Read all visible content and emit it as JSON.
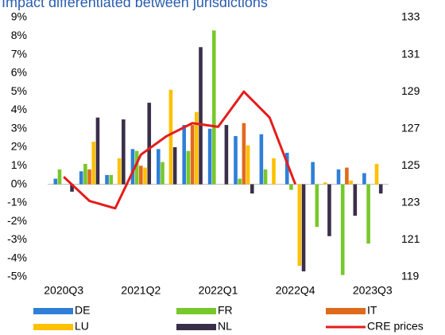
{
  "chart_data": {
    "type": "bar",
    "title": "Impact differentiated between jurisdictions",
    "categories": [
      "2020Q3",
      null,
      null,
      "2021Q2",
      null,
      null,
      "2022Q1",
      null,
      null,
      "2022Q4",
      null,
      null,
      "2023Q3"
    ],
    "series": [
      {
        "name": "DE",
        "color": "#2f7fd8",
        "values": [
          0.3,
          0.7,
          0.5,
          1.9,
          1.9,
          3.2,
          3.0,
          2.6,
          2.7,
          1.7,
          1.2,
          0.8,
          0.6
        ]
      },
      {
        "name": "FR",
        "color": "#77c82a",
        "values": [
          0.8,
          1.1,
          0.5,
          1.8,
          1.2,
          1.8,
          8.3,
          0.3,
          0.8,
          -0.3,
          -2.3,
          -4.9,
          -3.2
        ]
      },
      {
        "name": "IT",
        "color": "#e06a1c",
        "values": [
          0,
          0.8,
          0,
          1.0,
          0,
          3.2,
          0,
          3.3,
          0,
          0,
          0,
          0.9,
          0
        ]
      },
      {
        "name": "LU",
        "color": "#ffc000",
        "values": [
          0,
          2.3,
          1.4,
          0.9,
          5.1,
          3.9,
          0,
          2.1,
          1.4,
          -4.4,
          0.1,
          0.2,
          1.1
        ]
      },
      {
        "name": "NL",
        "color": "#3a2f4a",
        "values": [
          -0.4,
          3.6,
          3.5,
          4.4,
          2.0,
          7.4,
          3.2,
          -0.5,
          0,
          -4.7,
          -2.8,
          -1.7,
          -0.5
        ]
      },
      {
        "name": "CRE prices",
        "color": "#e51c1c",
        "type": "line",
        "axis": "y2",
        "values": [
          124.4,
          123.1,
          122.7,
          125.6,
          126.6,
          127.3,
          127.1,
          129.0,
          127.6,
          124.0,
          null,
          null,
          null
        ]
      }
    ],
    "ylim": [
      -5,
      9
    ],
    "yticks": [
      {
        "value": -5,
        "label": "-5%"
      },
      {
        "value": -4,
        "label": "-4%"
      },
      {
        "value": -3,
        "label": "-3%"
      },
      {
        "value": -2,
        "label": "-2%"
      },
      {
        "value": -1,
        "label": "-1%"
      },
      {
        "value": 0,
        "label": "0%"
      },
      {
        "value": 1,
        "label": "1%"
      },
      {
        "value": 2,
        "label": "2%"
      },
      {
        "value": 3,
        "label": "3%"
      },
      {
        "value": 4,
        "label": "4%"
      },
      {
        "value": 5,
        "label": "5%"
      },
      {
        "value": 6,
        "label": "6%"
      },
      {
        "value": 7,
        "label": "7%"
      },
      {
        "value": 8,
        "label": "8%"
      },
      {
        "value": 9,
        "label": "9%"
      }
    ],
    "y2lim": [
      119,
      133
    ],
    "y2ticks": [
      119,
      121,
      123,
      125,
      127,
      129,
      131,
      133
    ],
    "grid": false
  }
}
